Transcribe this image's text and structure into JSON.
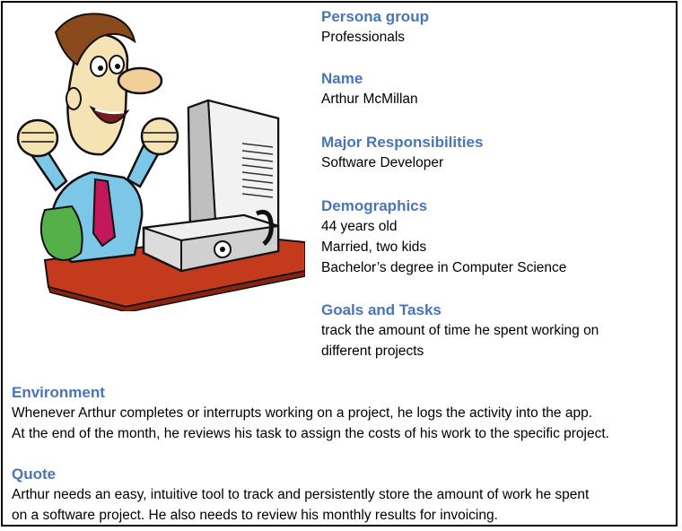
{
  "sections": {
    "persona_group": {
      "heading": "Persona group",
      "lines": [
        "Professionals"
      ]
    },
    "name": {
      "heading": "Name",
      "lines": [
        "Arthur McMillan"
      ]
    },
    "responsibilities": {
      "heading": "Major Responsibilities",
      "lines": [
        "Software Developer"
      ]
    },
    "demographics": {
      "heading": "Demographics",
      "lines": [
        "44 years old",
        "Married, two kids",
        "Bachelor’s degree in Computer Science"
      ]
    },
    "goals": {
      "heading": "Goals and Tasks",
      "lines": [
        "track the amount of time he spent working on",
        "different projects"
      ]
    },
    "environment": {
      "heading": "Environment",
      "lines": [
        "Whenever Arthur completes or interrupts working on a project, he logs the activity into the app.",
        "At the end of the month, he reviews his task to assign the costs of his work to the specific project."
      ]
    },
    "quote": {
      "heading": "Quote",
      "lines": [
        "Arthur needs an easy, intuitive tool to track and persistently store the amount of work he spent",
        "on a software project. He also needs to review his monthly results for invoicing."
      ]
    }
  },
  "colors": {
    "heading": "#4a74b5",
    "text": "#000000",
    "border": "#000000"
  },
  "icons": {
    "illustration": "excited-man-at-computer-illustration"
  }
}
